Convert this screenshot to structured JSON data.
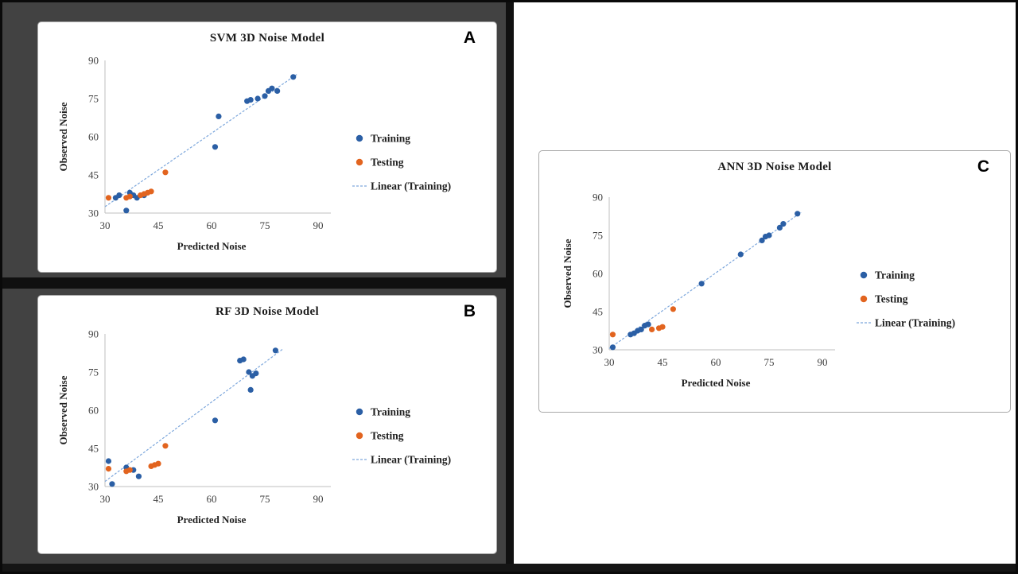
{
  "chart_data": [
    {
      "letter": "A",
      "type": "scatter",
      "title": "SVM 3D Noise Model",
      "xlabel": "Predicted Noise",
      "ylabel": "Observed Noise",
      "xlim": [
        30,
        90
      ],
      "ylim": [
        30,
        90
      ],
      "ticks": [
        30,
        45,
        60,
        75,
        90
      ],
      "series": [
        {
          "name": "Training",
          "color": "#2b5fa5",
          "points": [
            [
              33,
              36
            ],
            [
              34,
              37
            ],
            [
              36,
              31
            ],
            [
              37,
              38
            ],
            [
              38,
              37
            ],
            [
              39,
              36
            ],
            [
              41,
              37
            ],
            [
              61,
              56
            ],
            [
              62,
              68
            ],
            [
              70,
              74
            ],
            [
              71,
              74.5
            ],
            [
              73,
              75
            ],
            [
              75,
              76
            ],
            [
              76,
              78
            ],
            [
              77,
              79
            ],
            [
              78.5,
              78
            ],
            [
              83,
              83.5
            ]
          ]
        },
        {
          "name": "Testing",
          "color": "#e2641f",
          "points": [
            [
              31,
              36
            ],
            [
              36,
              36
            ],
            [
              37,
              36.5
            ],
            [
              40,
              37
            ],
            [
              41,
              37.5
            ],
            [
              42,
              38
            ],
            [
              43,
              38.5
            ],
            [
              47,
              46
            ]
          ]
        }
      ],
      "trendline": {
        "label": "Linear (Training)",
        "color": "#7da7dc",
        "x1": 30,
        "y1": 32.5,
        "x2": 84,
        "y2": 84.5
      }
    },
    {
      "letter": "B",
      "type": "scatter",
      "title": "RF 3D Noise Model",
      "xlabel": "Predicted Noise",
      "ylabel": "Observed Noise",
      "xlim": [
        30,
        90
      ],
      "ylim": [
        30,
        90
      ],
      "ticks": [
        30,
        45,
        60,
        75,
        90
      ],
      "series": [
        {
          "name": "Training",
          "color": "#2b5fa5",
          "points": [
            [
              31,
              40
            ],
            [
              32,
              31
            ],
            [
              36,
              37.5
            ],
            [
              38,
              36.5
            ],
            [
              39.5,
              34
            ],
            [
              61,
              56
            ],
            [
              68,
              79.5
            ],
            [
              69,
              80
            ],
            [
              70.5,
              75
            ],
            [
              71,
              68
            ],
            [
              71.5,
              73.5
            ],
            [
              72.5,
              74.5
            ],
            [
              78,
              83.5
            ]
          ]
        },
        {
          "name": "Testing",
          "color": "#e2641f",
          "points": [
            [
              31,
              37
            ],
            [
              36,
              36
            ],
            [
              37,
              36.5
            ],
            [
              43,
              38
            ],
            [
              44,
              38.5
            ],
            [
              45,
              39
            ],
            [
              47,
              46
            ]
          ]
        }
      ],
      "trendline": {
        "label": "Linear (Training)",
        "color": "#7da7dc",
        "x1": 30,
        "y1": 32,
        "x2": 80,
        "y2": 84
      }
    },
    {
      "letter": "C",
      "type": "scatter",
      "title": "ANN 3D Noise Model",
      "xlabel": "Predicted Noise",
      "ylabel": "Observed Noise",
      "xlim": [
        30,
        90
      ],
      "ylim": [
        30,
        90
      ],
      "ticks": [
        30,
        45,
        60,
        75,
        90
      ],
      "series": [
        {
          "name": "Training",
          "color": "#2b5fa5",
          "points": [
            [
              31,
              31
            ],
            [
              36,
              36
            ],
            [
              37,
              36.5
            ],
            [
              38,
              37.5
            ],
            [
              39,
              38
            ],
            [
              40,
              39.5
            ],
            [
              41,
              40
            ],
            [
              56,
              56
            ],
            [
              67,
              67.5
            ],
            [
              73,
              73
            ],
            [
              74,
              74.5
            ],
            [
              75,
              75
            ],
            [
              78,
              78
            ],
            [
              79,
              79.5
            ],
            [
              83,
              83.5
            ]
          ]
        },
        {
          "name": "Testing",
          "color": "#e2641f",
          "points": [
            [
              31,
              36
            ],
            [
              42,
              38
            ],
            [
              44,
              38.5
            ],
            [
              45,
              39
            ],
            [
              48,
              46
            ]
          ]
        }
      ],
      "trendline": {
        "label": "Linear (Training)",
        "color": "#7da7dc",
        "x1": 30,
        "y1": 30.5,
        "x2": 84,
        "y2": 84
      }
    }
  ]
}
